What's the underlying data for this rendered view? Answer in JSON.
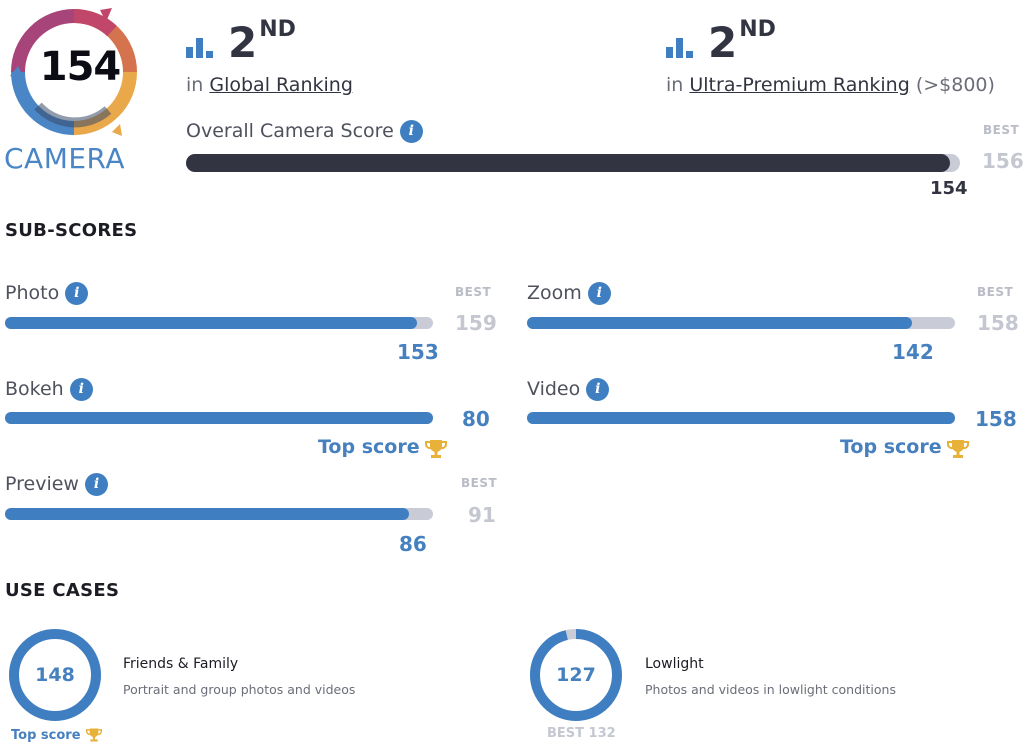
{
  "header": {
    "badge_score": "154",
    "badge_label": "CAMERA",
    "global": {
      "rank": "2",
      "suffix": "ND",
      "prefix": "in",
      "link": "Global Ranking"
    },
    "premium": {
      "rank": "2",
      "suffix": "ND",
      "prefix": "in",
      "link": "Ultra-Premium Ranking",
      "extra": "(>$800)"
    },
    "overall": {
      "label": "Overall Camera Score",
      "best_label": "BEST",
      "best": "156",
      "score": "154",
      "fraction": 0.987
    }
  },
  "subscores": {
    "title": "SUB-SCORES",
    "photo": {
      "label": "Photo",
      "best_label": "BEST",
      "best": "159",
      "score": "153",
      "fraction": 0.962
    },
    "zoom": {
      "label": "Zoom",
      "best_label": "BEST",
      "best": "158",
      "score": "142",
      "fraction": 0.899
    },
    "bokeh": {
      "label": "Bokeh",
      "score": "80",
      "top": "Top score",
      "fraction": 1.0
    },
    "video": {
      "label": "Video",
      "score": "158",
      "top": "Top score",
      "fraction": 1.0
    },
    "preview": {
      "label": "Preview",
      "best_label": "BEST",
      "best": "91",
      "score": "86",
      "fraction": 0.945
    }
  },
  "usecases": {
    "title": "USE CASES",
    "friends": {
      "score": "148",
      "title": "Friends & Family",
      "desc": "Portrait and group photos and videos",
      "top": "Top score",
      "fraction": 1.0
    },
    "lowlight": {
      "score": "127",
      "title": "Lowlight",
      "desc": "Photos and videos in lowlight conditions",
      "best": "BEST 132",
      "fraction": 0.962
    }
  },
  "colors": {
    "accent": "#4680bf",
    "dark": "#323541",
    "track": "#c9ccd6",
    "trophy": "#e8b23a"
  },
  "icons": [
    "ranking-bars-icon",
    "info-icon",
    "trophy-icon",
    "camera-badge-logo"
  ]
}
